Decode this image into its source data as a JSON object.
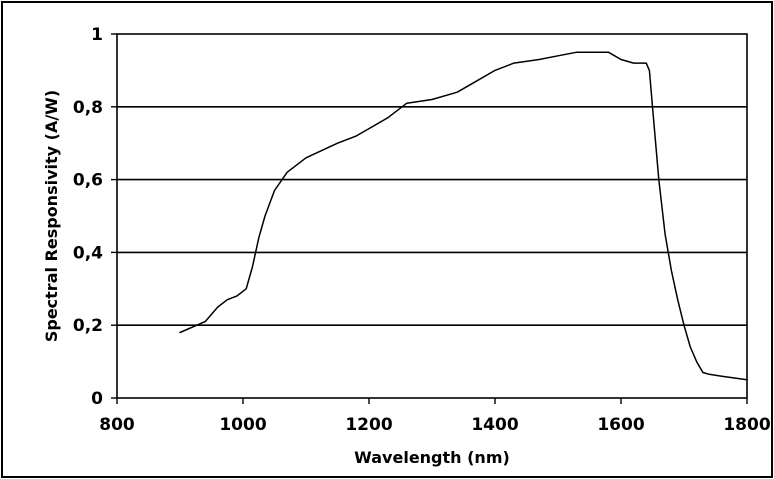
{
  "chart_data": {
    "type": "line",
    "title": "",
    "xlabel": "Wavelength (nm)",
    "ylabel": "Spectral Responsivity (A/W)",
    "xlim": [
      800,
      1800
    ],
    "ylim": [
      0,
      1
    ],
    "x_ticks": [
      800,
      1000,
      1200,
      1400,
      1600,
      1800
    ],
    "x_tick_labels": [
      "800",
      "1000",
      "1200",
      "1400",
      "1600",
      "1800"
    ],
    "y_ticks": [
      0,
      0.2,
      0.4,
      0.6,
      0.8,
      1
    ],
    "y_tick_labels": [
      "0",
      "0,2",
      "0,4",
      "0,6",
      "0,8",
      "1"
    ],
    "grid": "horizontal",
    "legend": "none",
    "colors": {
      "line": "#000000",
      "grid": "#000000",
      "background": "#ffffff"
    },
    "series": [
      {
        "x": [
          900,
          940,
          950,
          960,
          975,
          990,
          1005,
          1015,
          1025,
          1035,
          1050,
          1070,
          1100,
          1150,
          1180,
          1200,
          1230,
          1260,
          1300,
          1340,
          1370,
          1400,
          1430,
          1470,
          1500,
          1530,
          1560,
          1580,
          1600,
          1620,
          1640,
          1645,
          1650,
          1660,
          1670,
          1680,
          1690,
          1700,
          1710,
          1720,
          1730,
          1740,
          1760,
          1780,
          1800
        ],
        "y": [
          0.18,
          0.21,
          0.23,
          0.25,
          0.27,
          0.28,
          0.3,
          0.36,
          0.44,
          0.5,
          0.57,
          0.62,
          0.66,
          0.7,
          0.72,
          0.74,
          0.77,
          0.81,
          0.82,
          0.84,
          0.87,
          0.9,
          0.92,
          0.93,
          0.94,
          0.95,
          0.95,
          0.95,
          0.93,
          0.92,
          0.92,
          0.9,
          0.8,
          0.6,
          0.45,
          0.35,
          0.27,
          0.2,
          0.14,
          0.1,
          0.07,
          0.065,
          0.06,
          0.055,
          0.05
        ]
      }
    ]
  }
}
